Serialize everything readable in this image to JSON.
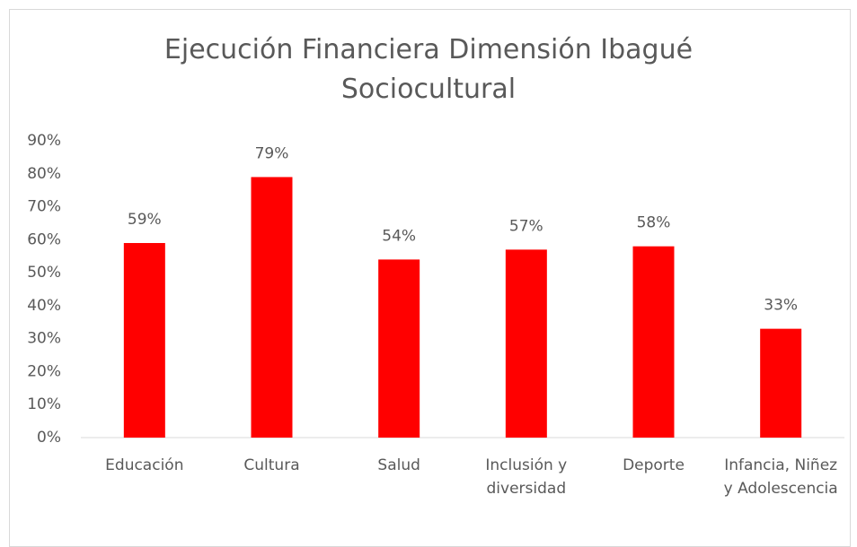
{
  "chart_data": {
    "type": "bar",
    "title": "Ejecución Financiera Dimensión Ibagué Sociocultural",
    "categories": [
      "Educación",
      "Cultura",
      "Salud",
      "Inclusión y diversidad",
      "Deporte",
      "Infancia, Niñez y Adolescencia"
    ],
    "values": [
      59,
      79,
      54,
      57,
      58,
      33
    ],
    "value_labels": [
      "59%",
      "79%",
      "54%",
      "57%",
      "58%",
      "33%"
    ],
    "color": "#ff0000",
    "ylim": [
      0,
      90
    ],
    "yticks": [
      {
        "value": 0,
        "label": "0%"
      },
      {
        "value": 10,
        "label": "10%"
      },
      {
        "value": 20,
        "label": "20%"
      },
      {
        "value": 30,
        "label": "30%"
      },
      {
        "value": 40,
        "label": "40%"
      },
      {
        "value": 50,
        "label": "50%"
      },
      {
        "value": 60,
        "label": "60%"
      },
      {
        "value": 70,
        "label": "70%"
      },
      {
        "value": 80,
        "label": "80%"
      },
      {
        "value": 90,
        "label": "90%"
      }
    ],
    "grid": false
  }
}
